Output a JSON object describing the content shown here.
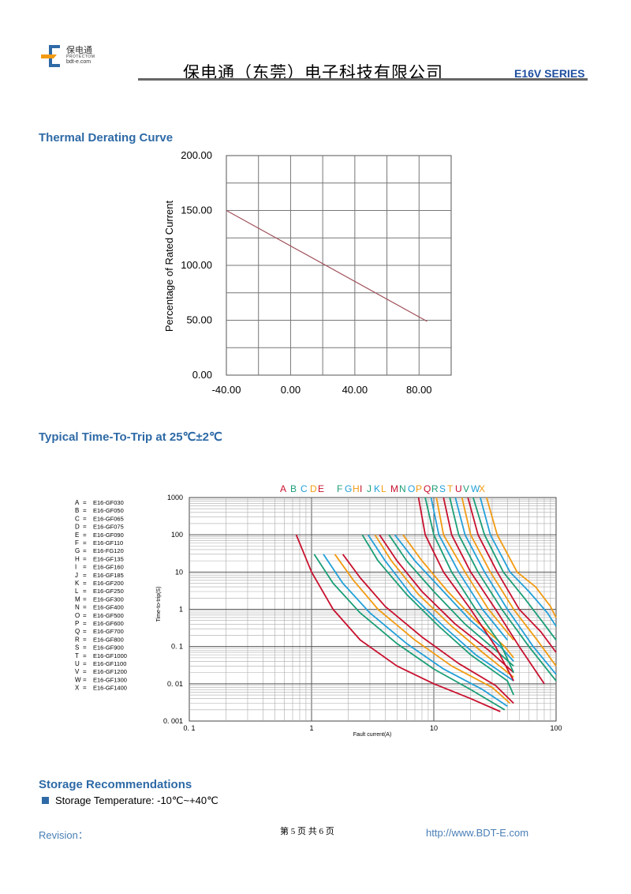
{
  "header": {
    "logo_cn": "保电通",
    "logo_en": "PROTECTOM",
    "logo_url": "bdt-e.com",
    "company": "保电通（东莞）电子科技有限公司",
    "series": "E16V SERIES",
    "brand_color": "#1f4fa0"
  },
  "thermal": {
    "title": "Thermal Derating Curve",
    "chart_data": {
      "type": "line",
      "ylabel": "Percentage of Rated Current",
      "xlabel": "",
      "x_ticks": [
        "-40.00",
        "0.00",
        "40.00",
        "80.00"
      ],
      "y_ticks": [
        "0.00",
        "50.00",
        "100.00",
        "150.00",
        "200.00"
      ],
      "xlim": [
        -40,
        100
      ],
      "ylim": [
        0,
        200
      ],
      "series": [
        {
          "x": [
            -40,
            85
          ],
          "y": [
            150,
            49
          ]
        }
      ],
      "line_color": "#a0505a",
      "grid": true
    }
  },
  "trip": {
    "title": "Typical Time-To-Trip at 25℃±2℃",
    "chart_data": {
      "type": "line",
      "xlabel": "Fault current(A)",
      "ylabel": "Time-to-trip(S)",
      "x_scale": "log",
      "y_scale": "log",
      "xlim": [
        0.1,
        100
      ],
      "ylim": [
        0.001,
        1000
      ],
      "x_ticks": [
        "0. 1",
        "1",
        "10",
        "100"
      ],
      "y_ticks": [
        "0. 001",
        "0. 01",
        "0. 1",
        "1",
        "10",
        "100",
        "1000"
      ],
      "curve_letters": [
        "A",
        "B",
        "C",
        "D",
        "E",
        "F",
        "G",
        "H",
        "I",
        "J",
        "K",
        "L",
        "M",
        "N",
        "O",
        "P",
        "Q",
        "R",
        "S",
        "T",
        "U",
        "V",
        "W",
        "X"
      ],
      "letter_colors": [
        "#c8102e",
        "#1b9e77",
        "#22a0d8",
        "#f29b12",
        "#c8102e",
        "#1b9e77",
        "#22a0d8",
        "#f29b12",
        "#c8102e",
        "#1b9e77",
        "#22a0d8",
        "#f29b12",
        "#c8102e",
        "#1b9e77",
        "#22a0d8",
        "#f29b12",
        "#c8102e",
        "#1b9e77",
        "#22a0d8",
        "#f29b12",
        "#c8102e",
        "#1b9e77",
        "#22a0d8",
        "#f29b12"
      ],
      "legend": [
        {
          "letter": "A",
          "part": "E16-GF030"
        },
        {
          "letter": "B",
          "part": "E16-GF050"
        },
        {
          "letter": "C",
          "part": "E16-GF065"
        },
        {
          "letter": "D",
          "part": "E16-GF075"
        },
        {
          "letter": "E",
          "part": "E16-GF090"
        },
        {
          "letter": "F",
          "part": "E16-GF110"
        },
        {
          "letter": "G",
          "part": "E16-FG120"
        },
        {
          "letter": "H",
          "part": "E16-GF135"
        },
        {
          "letter": "I",
          "part": "E16-GF160"
        },
        {
          "letter": "J",
          "part": "E16-GF185"
        },
        {
          "letter": "K",
          "part": "E16-GF200"
        },
        {
          "letter": "L",
          "part": "E16-GF250"
        },
        {
          "letter": "M",
          "part": "E16-GF300"
        },
        {
          "letter": "N",
          "part": "E16-GF400"
        },
        {
          "letter": "O",
          "part": "E16-GF500"
        },
        {
          "letter": "P",
          "part": "E16-GF600"
        },
        {
          "letter": "Q",
          "part": "E16-GF700"
        },
        {
          "letter": "R",
          "part": "E16-GF800"
        },
        {
          "letter": "S",
          "part": "E16-GF900"
        },
        {
          "letter": "T",
          "part": "E16-GF1000"
        },
        {
          "letter": "U",
          "part": "E16-GF1100"
        },
        {
          "letter": "V",
          "part": "E16-GF1200"
        },
        {
          "letter": "W",
          "part": "E16-GF1300"
        },
        {
          "letter": "X",
          "part": "E16-GF1400"
        }
      ],
      "curves": [
        {
          "name": "A",
          "color": "#c8102e",
          "x": [
            0.75,
            1.0,
            1.5,
            2.5,
            5,
            10,
            20,
            35
          ],
          "y": [
            100,
            10,
            1,
            0.15,
            0.03,
            0.01,
            0.004,
            0.0018
          ]
        },
        {
          "name": "B",
          "color": "#1b9e77",
          "x": [
            1.05,
            1.5,
            2.5,
            5,
            10,
            20,
            38
          ],
          "y": [
            30,
            5,
            0.8,
            0.12,
            0.025,
            0.007,
            0.002
          ]
        },
        {
          "name": "C",
          "color": "#22a0d8",
          "x": [
            1.25,
            1.8,
            3,
            6,
            12,
            25,
            40
          ],
          "y": [
            30,
            5,
            0.8,
            0.12,
            0.025,
            0.007,
            0.0025
          ]
        },
        {
          "name": "D",
          "color": "#f29b12",
          "x": [
            1.55,
            2.2,
            3.5,
            7,
            14,
            30,
            42
          ],
          "y": [
            30,
            6,
            1,
            0.15,
            0.03,
            0.008,
            0.003
          ]
        },
        {
          "name": "E",
          "color": "#c8102e",
          "x": [
            1.8,
            2.5,
            4,
            8,
            16,
            32,
            45
          ],
          "y": [
            30,
            7,
            1.2,
            0.18,
            0.035,
            0.009,
            0.003
          ]
        },
        {
          "name": "F",
          "color": "#1b9e77",
          "x": [
            2.6,
            3.5,
            6,
            11,
            20,
            40,
            45
          ],
          "y": [
            100,
            20,
            2.5,
            0.35,
            0.06,
            0.012,
            0.005
          ]
        },
        {
          "name": "G",
          "color": "#22a0d8",
          "x": [
            2.9,
            4,
            6.5,
            12,
            22,
            45
          ],
          "y": [
            100,
            20,
            2.5,
            0.35,
            0.06,
            0.012
          ]
        },
        {
          "name": "H",
          "color": "#f29b12",
          "x": [
            3.3,
            4.5,
            7.5,
            14,
            25,
            45
          ],
          "y": [
            100,
            20,
            2.5,
            0.35,
            0.07,
            0.015
          ]
        },
        {
          "name": "I",
          "color": "#c8102e",
          "x": [
            3.6,
            5,
            8,
            15,
            28,
            45
          ],
          "y": [
            100,
            20,
            3,
            0.4,
            0.08,
            0.02
          ]
        },
        {
          "name": "J",
          "color": "#1b9e77",
          "x": [
            4.3,
            6,
            10,
            18,
            32,
            45
          ],
          "y": [
            100,
            20,
            3,
            0.4,
            0.08,
            0.03
          ]
        },
        {
          "name": "K",
          "color": "#22a0d8",
          "x": [
            4.8,
            7,
            12,
            20,
            35,
            45
          ],
          "y": [
            100,
            20,
            3,
            0.5,
            0.1,
            0.04
          ]
        },
        {
          "name": "L",
          "color": "#f29b12",
          "x": [
            5.6,
            8,
            13,
            22,
            38,
            45
          ],
          "y": [
            100,
            20,
            3,
            0.5,
            0.1,
            0.05
          ]
        },
        {
          "name": "M",
          "color": "#c8102e",
          "x": [
            7.5,
            8.5,
            12,
            20,
            32,
            45
          ],
          "y": [
            1000,
            100,
            10,
            1,
            0.1,
            0.012
          ]
        },
        {
          "name": "N",
          "color": "#1b9e77",
          "x": [
            8.5,
            10,
            14,
            22,
            35,
            45
          ],
          "y": [
            1000,
            100,
            10,
            1,
            0.12,
            0.02
          ]
        },
        {
          "name": "O",
          "color": "#22a0d8",
          "x": [
            9.5,
            11,
            16,
            25,
            40
          ],
          "y": [
            1000,
            100,
            10,
            1,
            0.15
          ]
        },
        {
          "name": "P",
          "color": "#f29b12",
          "x": [
            10.5,
            12,
            18,
            28,
            45
          ],
          "y": [
            1000,
            100,
            10,
            1,
            0.15
          ]
        },
        {
          "name": "Q",
          "color": "#c8102e",
          "x": [
            12,
            14,
            20,
            32,
            50,
            80
          ],
          "y": [
            1000,
            100,
            10,
            1,
            0.1,
            0.01
          ]
        },
        {
          "name": "R",
          "color": "#1b9e77",
          "x": [
            13.5,
            16,
            23,
            36,
            60,
            100
          ],
          "y": [
            1000,
            100,
            10,
            1,
            0.1,
            0.012
          ]
        },
        {
          "name": "S",
          "color": "#22a0d8",
          "x": [
            15,
            18,
            26,
            40,
            65,
            100
          ],
          "y": [
            1000,
            100,
            10,
            1,
            0.1,
            0.018
          ]
        },
        {
          "name": "T",
          "color": "#f29b12",
          "x": [
            17,
            20,
            29,
            45,
            70,
            100
          ],
          "y": [
            1000,
            100,
            10,
            1,
            0.15,
            0.03
          ]
        },
        {
          "name": "U",
          "color": "#c8102e",
          "x": [
            19,
            23,
            33,
            50,
            75,
            100
          ],
          "y": [
            1000,
            100,
            10,
            1,
            0.25,
            0.07
          ]
        },
        {
          "name": "V",
          "color": "#1b9e77",
          "x": [
            21,
            26,
            37,
            55,
            80,
            100
          ],
          "y": [
            1000,
            100,
            10,
            2,
            0.4,
            0.15
          ]
        },
        {
          "name": "W",
          "color": "#22a0d8",
          "x": [
            24,
            29,
            42,
            60,
            85,
            100
          ],
          "y": [
            1000,
            100,
            10,
            3,
            0.8,
            0.35
          ]
        },
        {
          "name": "X",
          "color": "#f29b12",
          "x": [
            27,
            33,
            48,
            68,
            90,
            100
          ],
          "y": [
            1000,
            100,
            10,
            4,
            1.2,
            0.6
          ]
        }
      ]
    }
  },
  "storage": {
    "title": "Storage Recommendations",
    "item": "Storage Temperature: -10℃~+40℃"
  },
  "footer": {
    "revision": "Revision：",
    "page": "第 5 页 共 6 页",
    "url": "http://www.BDT-E.com"
  }
}
